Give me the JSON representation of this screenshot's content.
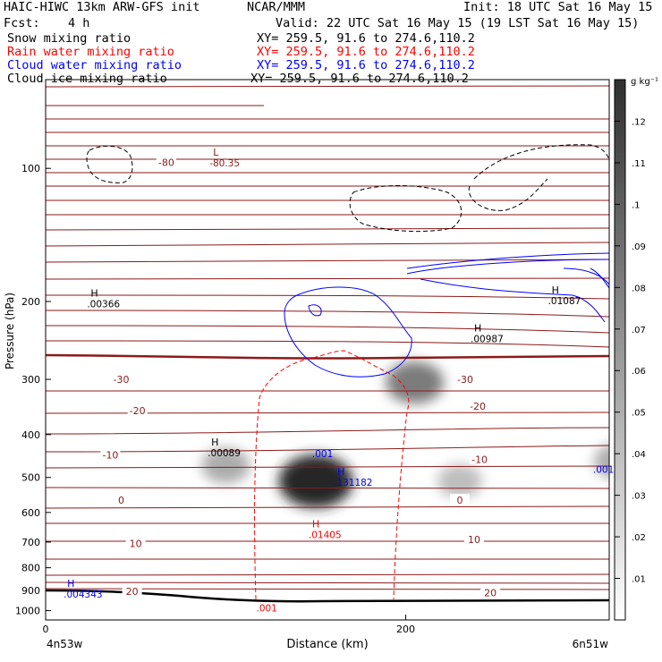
{
  "header": {
    "model": "HAIC-HIWC 13km ARW-GFS init",
    "center": "NCAR/MMM",
    "init": "Init: 18 UTC Sat 16 May 15",
    "fcst_label": "Fcst:",
    "fcst_value": "4 h",
    "valid": "Valid: 22 UTC Sat 16 May 15 (19 LST Sat 16 May 15)"
  },
  "fields": [
    {
      "name": "Snow mixing ratio",
      "xy": "XY= 259.5, 91.6 to 274.6,110.2",
      "color": "#000000"
    },
    {
      "name": "Rain water mixing ratio",
      "xy": "XY= 259.5, 91.6 to 274.6,110.2",
      "color": "#ff0000"
    },
    {
      "name": "Cloud water mixing ratio",
      "xy": "XY= 259.5, 91.6 to 274.6,110.2",
      "color": "#0000ff"
    },
    {
      "name": "Cloud ice mixing ratio",
      "xy": "XY= 259.5, 91.6 to 274.6,110.2",
      "color": "#000000"
    }
  ],
  "chart_data": {
    "type": "heatmap",
    "xlabel": "Distance (km)",
    "ylabel": "Pressure (hPa)",
    "xlim": [
      0,
      313
    ],
    "ylim": [
      1050,
      63
    ],
    "y_log": true,
    "x_ticks": [
      0,
      200
    ],
    "y_ticks": [
      100,
      200,
      300,
      400,
      500,
      600,
      700,
      800,
      900,
      1000
    ],
    "endpoints": {
      "left": "4n53w",
      "right": "6n51w"
    },
    "colorbar": {
      "unit": "g kg⁻¹",
      "ticks": [
        ".01",
        ".02",
        ".03",
        ".04",
        ".05",
        ".06",
        ".07",
        ".08",
        ".09",
        ".1",
        ".11",
        ".12"
      ],
      "values": [
        0.01,
        0.02,
        0.03,
        0.04,
        0.05,
        0.06,
        0.07,
        0.08,
        0.09,
        0.1,
        0.11,
        0.12
      ]
    },
    "shading_field": "Snow mixing ratio",
    "shaded_blobs": [
      {
        "x": 150,
        "p": 510,
        "peak": 0.13
      },
      {
        "x": 100,
        "p": 470,
        "peak": 0.05
      },
      {
        "x": 205,
        "p": 305,
        "peak": 0.08
      },
      {
        "x": 230,
        "p": 510,
        "peak": 0.04
      },
      {
        "x": 318,
        "p": 460,
        "peak": 0.05
      }
    ],
    "temperature_labels": [
      {
        "label": "-80",
        "x": 67,
        "p": 97
      },
      {
        "label": "-30",
        "x": 42,
        "p": 300
      },
      {
        "label": "-30",
        "x": 233,
        "p": 300
      },
      {
        "label": "-20",
        "x": 51,
        "p": 353
      },
      {
        "label": "-20",
        "x": 240,
        "p": 345
      },
      {
        "label": "-10",
        "x": 36,
        "p": 445
      },
      {
        "label": "-10",
        "x": 241,
        "p": 455
      },
      {
        "label": "0",
        "x": 42,
        "p": 563
      },
      {
        "label": "0",
        "x": 230,
        "p": 563
      },
      {
        "label": "10",
        "x": 50,
        "p": 705
      },
      {
        "label": "10",
        "x": 238,
        "p": 690
      },
      {
        "label": "20",
        "x": 48,
        "p": 905
      },
      {
        "label": "20",
        "x": 247,
        "p": 910
      }
    ],
    "extrema": [
      {
        "kind": "L",
        "value": "-80.35",
        "color": "#8b1a1a",
        "x": 93,
        "p": 98
      },
      {
        "kind": "H",
        "value": ".00366",
        "color": "#000000",
        "x": 25,
        "p": 204
      },
      {
        "kind": "H",
        "value": ".01087",
        "color": "#000000",
        "x": 281,
        "p": 201
      },
      {
        "kind": "H",
        "value": ".00987",
        "color": "#000000",
        "x": 238,
        "p": 245
      },
      {
        "kind": "H",
        "value": ".00089",
        "color": "#000000",
        "x": 92,
        "p": 444
      },
      {
        "kind": "H",
        "value": ".131182",
        "color": "#0000ff",
        "x": 162,
        "p": 517
      },
      {
        "kind": "H",
        "value": ".01405",
        "color": "#ff0000",
        "x": 148,
        "p": 680
      },
      {
        "kind": "H",
        "value": ".004343",
        "color": "#0000ff",
        "x": 12,
        "p": 925
      }
    ],
    "contour_labels": [
      {
        "text": ".001",
        "color": "#0000ff",
        "x": 148,
        "p": 450
      },
      {
        "text": ".001",
        "color": "#0000ff",
        "x": 304,
        "p": 488
      },
      {
        "text": ".001",
        "color": "#ff0000",
        "x": 117,
        "p": 1005
      }
    ]
  }
}
